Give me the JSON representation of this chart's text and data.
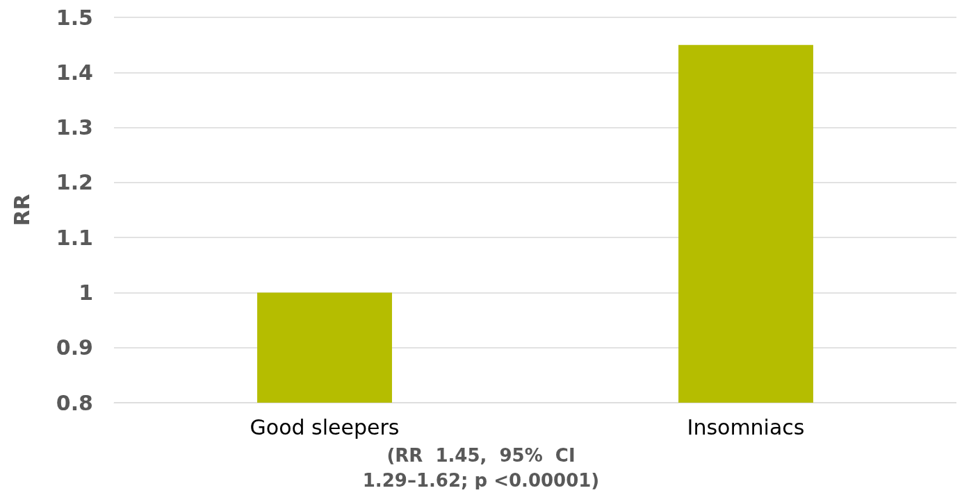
{
  "chart_data": {
    "type": "bar",
    "ylabel": "RR",
    "categories": [
      "Good sleepers",
      "Insomniacs"
    ],
    "values": [
      1,
      1.45
    ],
    "color": "#b5bd00",
    "ylim": [
      0.8,
      1.5
    ],
    "yticks": [
      0.8,
      0.9,
      1,
      1.1,
      1.2,
      1.3,
      1.4,
      1.5
    ],
    "grid": "y",
    "annotations": [
      "(RR  1.45,  95%  CI\n1.29–1.62; p <0.00001)"
    ]
  }
}
